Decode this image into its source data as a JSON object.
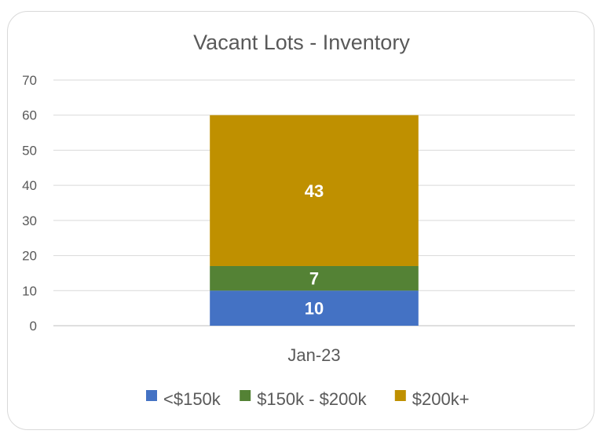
{
  "chart_data": {
    "type": "bar",
    "stacked": true,
    "title": "Vacant Lots - Inventory",
    "xlabel": "",
    "ylabel": "",
    "categories": [
      "Jan-23"
    ],
    "ylim": [
      0,
      70
    ],
    "yticks": [
      0,
      10,
      20,
      30,
      40,
      50,
      60,
      70
    ],
    "grid": true,
    "legend_position": "bottom",
    "series": [
      {
        "name": "<$150k",
        "values": [
          10
        ],
        "color": "#4472c4"
      },
      {
        "name": "$150k - $200k",
        "values": [
          7
        ],
        "color": "#548235"
      },
      {
        "name": "$200k+",
        "values": [
          43
        ],
        "color": "#bf9000"
      }
    ]
  }
}
